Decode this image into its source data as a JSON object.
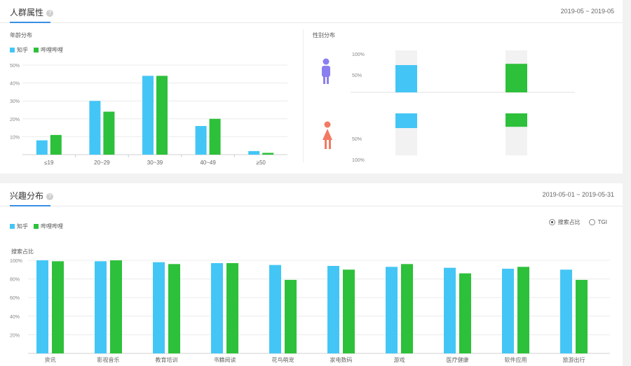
{
  "top_card": {
    "title": "人群属性",
    "date_range": "2019-05 ~ 2019-05"
  },
  "bottom_card": {
    "title": "兴趣分布",
    "date_range": "2019-05-01 ~ 2019-05-31",
    "radio_options": [
      "搜索占比",
      "TGI"
    ],
    "radio_selected": 0
  },
  "colors": {
    "series_a": "#43c6f5",
    "series_b": "#2dc03a"
  },
  "chart_data": [
    {
      "type": "bar",
      "title": "年龄分布",
      "categories": [
        "≤19",
        "20~29",
        "30~39",
        "40~49",
        "≥50"
      ],
      "series": [
        {
          "name": "知乎",
          "values": [
            8,
            30,
            44,
            16,
            2
          ]
        },
        {
          "name": "哔哩哔哩",
          "values": [
            11,
            24,
            44,
            20,
            1
          ]
        }
      ],
      "ylim": [
        0,
        50
      ],
      "yticks": [
        "10%",
        "20%",
        "30%",
        "40%",
        "50%"
      ],
      "grid": true,
      "legend": "top-left"
    },
    {
      "type": "bar",
      "title": "性别分布",
      "categories": [
        "男",
        "女"
      ],
      "series": [
        {
          "name": "知乎",
          "values": [
            65,
            35
          ]
        },
        {
          "name": "哔哩哔哩",
          "values": [
            68,
            32
          ]
        }
      ],
      "ylim": [
        0,
        100
      ],
      "yticks_male": [
        "100%",
        "50%"
      ],
      "yticks_female": [
        "50%",
        "100%"
      ]
    },
    {
      "type": "bar",
      "title": "搜索占比",
      "categories": [
        "资讯",
        "影视音乐",
        "教育培训",
        "书籍阅读",
        "花鸟萌宠",
        "家电数码",
        "游戏",
        "医疗健康",
        "软件应用",
        "旅游出行"
      ],
      "series": [
        {
          "name": "知乎",
          "values": [
            100,
            99,
            98,
            97,
            95,
            94,
            93,
            92,
            91,
            90
          ]
        },
        {
          "name": "哔哩哔哩",
          "values": [
            99,
            100,
            96,
            97,
            79,
            90,
            96,
            86,
            93,
            79
          ]
        }
      ],
      "ylim": [
        0,
        100
      ],
      "yticks": [
        "20%",
        "40%",
        "60%",
        "80%",
        "100%"
      ],
      "grid": true,
      "legend": "top-left"
    }
  ]
}
